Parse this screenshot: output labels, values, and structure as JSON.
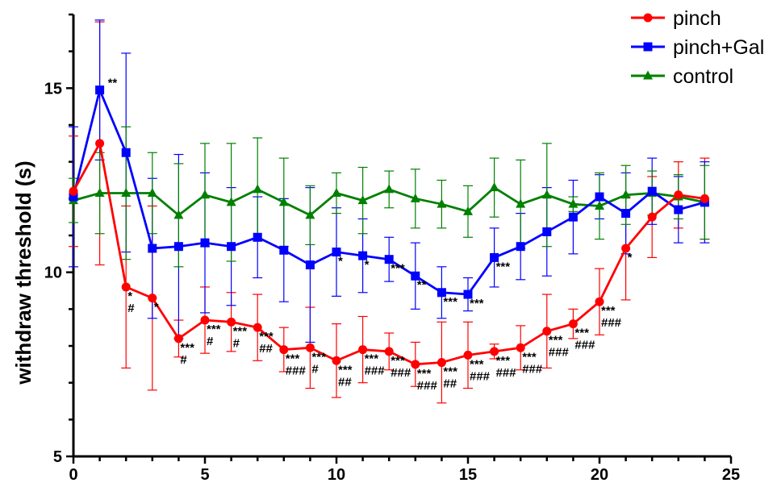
{
  "chart_data": {
    "type": "line",
    "title": "",
    "xlabel": "",
    "ylabel": "withdraw threshold (s)",
    "xlim": [
      0,
      25
    ],
    "ylim": [
      5,
      17
    ],
    "x_ticks": [
      "0",
      "5",
      "10",
      "15",
      "20",
      "25"
    ],
    "y_ticks": [
      "5",
      "10",
      "15"
    ],
    "grid": false,
    "legend_position": "top-right",
    "x": [
      0,
      1,
      2,
      3,
      4,
      5,
      6,
      7,
      8,
      9,
      10,
      11,
      12,
      13,
      14,
      15,
      16,
      17,
      18,
      19,
      20,
      21,
      22,
      23,
      24
    ],
    "series": [
      {
        "name": "pinch",
        "color": "#ff0000",
        "marker": "circle",
        "values": [
          12.2,
          13.5,
          9.6,
          9.3,
          8.2,
          8.7,
          8.65,
          8.5,
          7.9,
          7.95,
          7.6,
          7.9,
          7.85,
          7.5,
          7.55,
          7.75,
          7.85,
          7.95,
          8.4,
          8.6,
          9.2,
          10.65,
          11.5,
          12.1,
          12.0
        ],
        "error": [
          1.5,
          3.3,
          2.2,
          2.5,
          0.5,
          0.9,
          0.8,
          0.9,
          0.6,
          1.1,
          1.0,
          0.9,
          0.5,
          0.6,
          1.1,
          0.9,
          0.2,
          0.6,
          1.0,
          0.4,
          0.9,
          1.4,
          1.1,
          0.9,
          1.1
        ]
      },
      {
        "name": "pinch+Gal",
        "color": "#0000ff",
        "marker": "square",
        "values": [
          12.05,
          14.95,
          13.25,
          10.65,
          10.7,
          10.8,
          10.7,
          10.95,
          10.6,
          10.2,
          10.55,
          10.45,
          10.35,
          9.9,
          9.45,
          9.4,
          10.4,
          10.7,
          11.1,
          11.5,
          12.05,
          11.6,
          12.2,
          11.7,
          11.9
        ],
        "error": [
          1.9,
          1.9,
          2.7,
          1.9,
          2.5,
          1.9,
          1.6,
          1.1,
          1.4,
          2.1,
          1.2,
          1.0,
          0.6,
          0.9,
          0.7,
          0.45,
          0.8,
          0.9,
          1.2,
          1.0,
          0.6,
          1.1,
          0.9,
          0.9,
          1.1
        ]
      },
      {
        "name": "control",
        "color": "#008000",
        "marker": "triangle",
        "values": [
          11.95,
          12.15,
          12.15,
          12.15,
          11.55,
          12.1,
          11.9,
          12.25,
          11.9,
          11.55,
          12.15,
          11.95,
          12.25,
          12.0,
          11.85,
          11.65,
          12.3,
          11.85,
          12.1,
          11.85,
          11.8,
          12.1,
          12.15,
          12.05,
          11.9
        ],
        "error": [
          0.6,
          1.1,
          1.8,
          1.1,
          1.4,
          1.4,
          1.6,
          1.4,
          1.2,
          0.8,
          0.55,
          0.9,
          0.5,
          0.8,
          0.65,
          0.7,
          0.8,
          1.2,
          1.4,
          0.2,
          0.9,
          0.8,
          0.6,
          0.6,
          1.0
        ]
      }
    ],
    "annotations": [
      {
        "x": 1,
        "y": 14.95,
        "lines": [
          "**"
        ]
      },
      {
        "x": 2,
        "y": 9.6,
        "lines": [
          "*",
          "#"
        ]
      },
      {
        "x": 3,
        "y": 9.3,
        "lines": [
          "*"
        ]
      },
      {
        "x": 4,
        "y": 8.2,
        "lines": [
          "***",
          "#"
        ]
      },
      {
        "x": 5,
        "y": 8.7,
        "lines": [
          "***",
          "#"
        ]
      },
      {
        "x": 6,
        "y": 8.65,
        "lines": [
          "***",
          "#"
        ]
      },
      {
        "x": 7,
        "y": 8.5,
        "lines": [
          "***",
          "##"
        ]
      },
      {
        "x": 8,
        "y": 7.9,
        "lines": [
          "***",
          "###"
        ]
      },
      {
        "x": 9,
        "y": 7.95,
        "lines": [
          "***",
          "#"
        ]
      },
      {
        "x": 10,
        "y": 7.6,
        "lines": [
          "***",
          "##"
        ]
      },
      {
        "x": 11,
        "y": 7.9,
        "lines": [
          "***",
          "###"
        ]
      },
      {
        "x": 12,
        "y": 7.85,
        "lines": [
          "***",
          "###"
        ]
      },
      {
        "x": 13,
        "y": 7.5,
        "lines": [
          "***",
          "###"
        ]
      },
      {
        "x": 14,
        "y": 7.55,
        "lines": [
          "***",
          "##"
        ]
      },
      {
        "x": 15,
        "y": 7.75,
        "lines": [
          "***",
          "###"
        ]
      },
      {
        "x": 16,
        "y": 7.85,
        "lines": [
          "***",
          "###"
        ]
      },
      {
        "x": 17,
        "y": 7.95,
        "lines": [
          "***",
          "###"
        ]
      },
      {
        "x": 18,
        "y": 8.4,
        "lines": [
          "***",
          "###"
        ]
      },
      {
        "x": 19,
        "y": 8.6,
        "lines": [
          "***",
          "###"
        ]
      },
      {
        "x": 20,
        "y": 9.2,
        "lines": [
          "***",
          "###"
        ]
      },
      {
        "x": 21,
        "y": 10.65,
        "lines": [
          "*"
        ]
      },
      {
        "x": 10,
        "y": 10.55,
        "lines": [
          "*"
        ]
      },
      {
        "x": 11,
        "y": 10.45,
        "lines": [
          "*"
        ]
      },
      {
        "x": 12,
        "y": 10.35,
        "lines": [
          "***"
        ]
      },
      {
        "x": 13,
        "y": 9.9,
        "lines": [
          "**"
        ]
      },
      {
        "x": 14,
        "y": 9.45,
        "lines": [
          "***"
        ]
      },
      {
        "x": 15,
        "y": 9.4,
        "lines": [
          "***"
        ]
      },
      {
        "x": 16,
        "y": 10.4,
        "lines": [
          "***"
        ]
      }
    ]
  }
}
